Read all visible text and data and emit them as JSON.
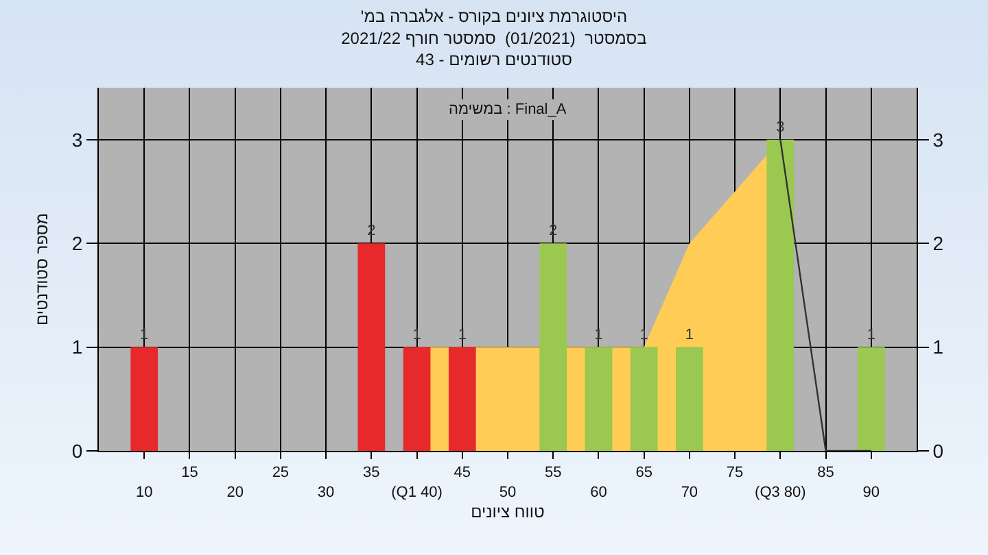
{
  "chart_data": {
    "type": "bar",
    "title": "'היסטוגרמת ציונים בקורס - אלגברה במ\nבסמסטר  (01/2021)  סמסטר חורף 2021/22\nסטודנטים רשומים - 43",
    "xlabel": "טווח ציונים",
    "ylabel": "מספר סטודנטים",
    "annotations": [
      "במשימה : Final_A"
    ],
    "categories": [
      "10",
      "15",
      "20",
      "25",
      "30",
      "35",
      "(Q1 40)",
      "45",
      "50",
      "55",
      "60",
      "65",
      "70",
      "75",
      "(Q3 80)",
      "85",
      "90"
    ],
    "series": [
      {
        "type": "area",
        "color": "#ffcc55",
        "x": [
          "(Q1 40)",
          "65",
          "70",
          "75",
          "(Q3 80)"
        ],
        "values": [
          1,
          1,
          2,
          2.5,
          3
        ]
      },
      {
        "colors": [
          "#e8292b",
          "#e8292b",
          "#e8292b",
          "#e8292b",
          "#e8292b",
          "#e8292b",
          "#e8292b",
          "#e8292b",
          "#e8292b",
          "#9bc850",
          "#9bc850",
          "#9bc850",
          "#9bc850",
          "#9bc850",
          "#9bc850",
          "#9bc850",
          "#9bc850"
        ],
        "values": [
          1,
          0,
          0,
          0,
          0,
          2,
          1,
          1,
          0,
          2,
          1,
          1,
          1,
          0,
          3,
          0,
          1
        ],
        "value_labels": [
          "1",
          null,
          null,
          null,
          null,
          "2",
          "1",
          "1",
          null,
          "2",
          "1",
          "1",
          "1",
          null,
          "3",
          null,
          "1"
        ]
      },
      {
        "type": "line",
        "color": "#333333",
        "x": [
          "(Q3 80)",
          "85",
          "90"
        ],
        "values": [
          3,
          0,
          0
        ]
      }
    ],
    "ylim": [
      0,
      3.5
    ],
    "yticks": [
      0,
      1,
      2,
      3
    ],
    "y2lim": [
      0,
      3.5
    ],
    "y2ticks": [
      0,
      1,
      2,
      3
    ],
    "grid": true
  }
}
